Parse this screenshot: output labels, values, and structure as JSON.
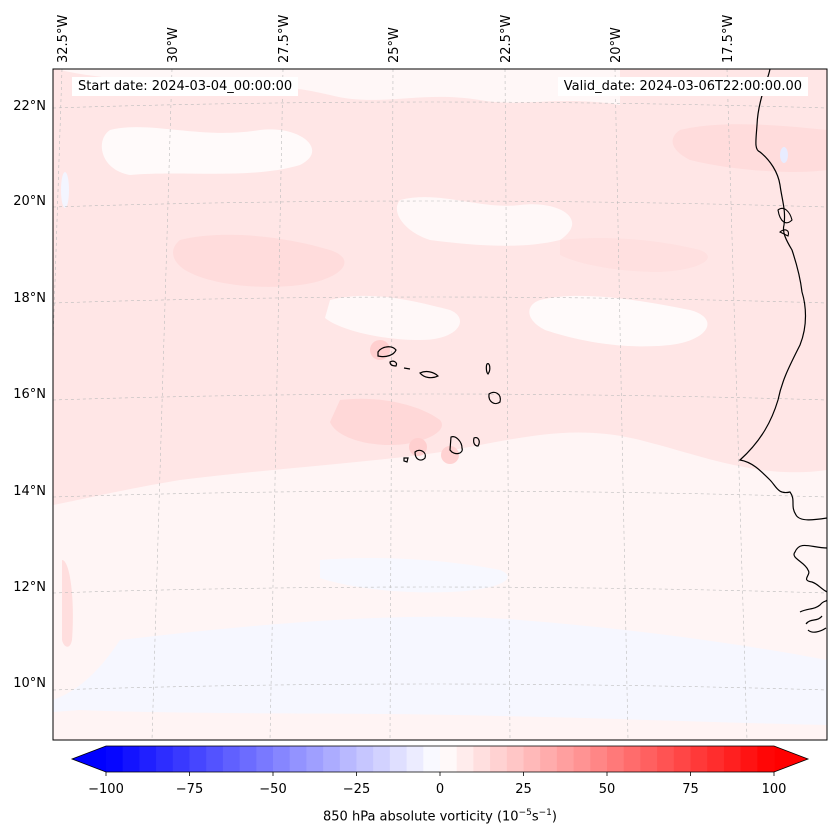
{
  "map": {
    "start_date": "Start date: 2024-03-04_00:00:00",
    "valid_date": "Valid_date: 2024-03-06T22:00:00.00",
    "lon_labels": [
      "32.5°W",
      "30°W",
      "27.5°W",
      "25°W",
      "22.5°W",
      "20°W",
      "17.5°W"
    ],
    "lat_labels": [
      "22°N",
      "20°N",
      "18°N",
      "16°N",
      "14°N",
      "12°N",
      "10°N"
    ],
    "field_colors": {
      "background": "#fff5f5",
      "light_pink": "#ffe6e6",
      "pink": "#ffdcdc",
      "white": "#fffafa",
      "light_blue": "#f4f6ff",
      "coast": "#000000",
      "grid": "#bbbbbb"
    }
  },
  "colorbar": {
    "ticks": [
      "−100",
      "−75",
      "−50",
      "−25",
      "0",
      "25",
      "50",
      "75",
      "100"
    ],
    "label_prefix": "850 hPa absolute vorticity (10",
    "label_exp1": "−5",
    "label_mid": "s",
    "label_exp2": "−1",
    "label_suffix": ")",
    "min_color": "#0000ff",
    "mid_color": "#ffffff",
    "max_color": "#ff0000",
    "levels": 40
  }
}
